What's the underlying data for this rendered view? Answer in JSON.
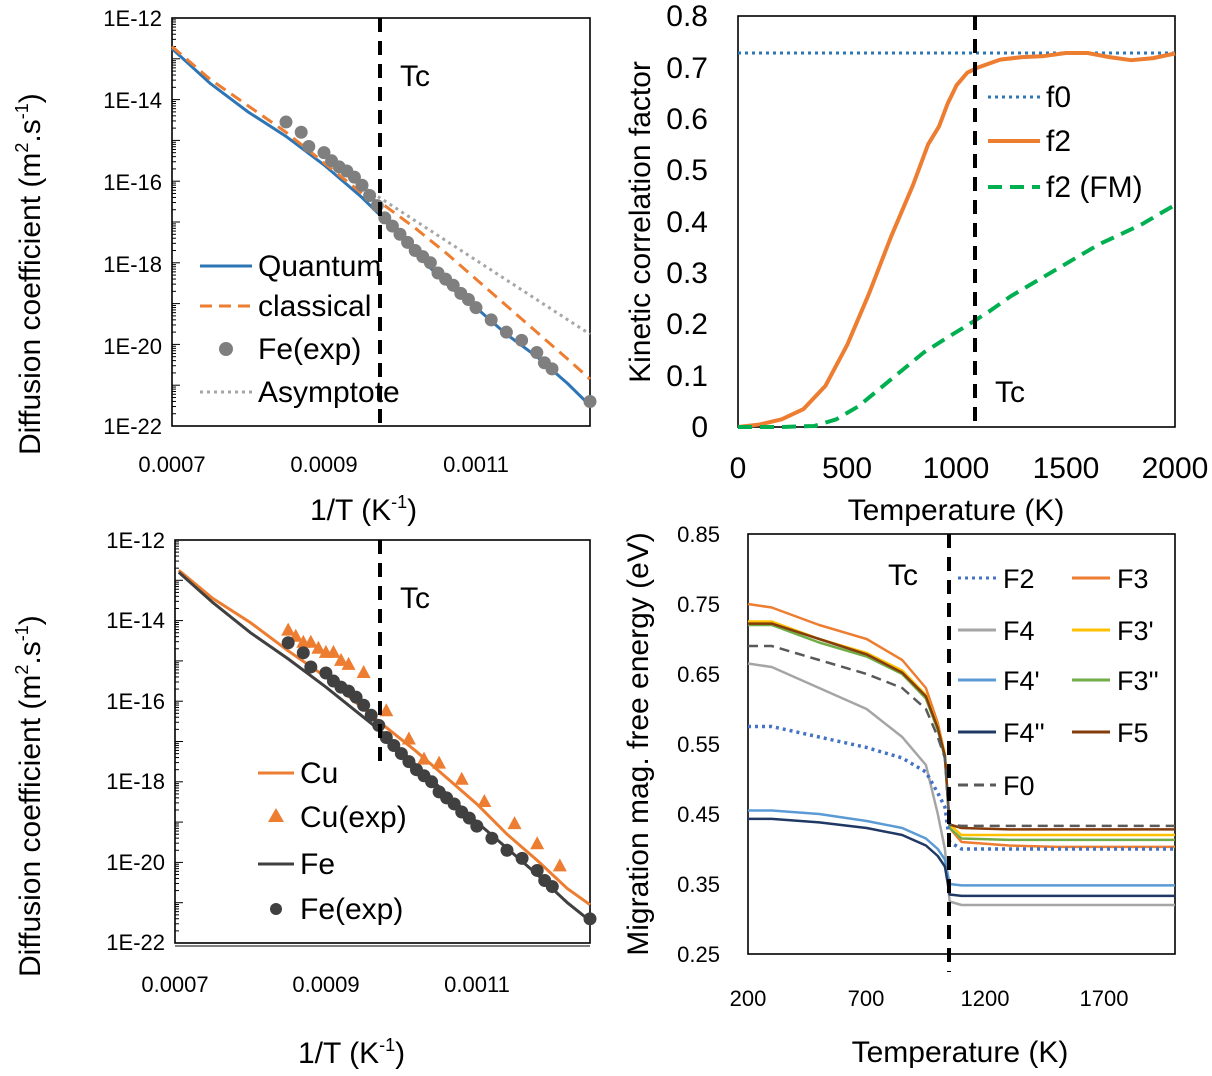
{
  "chart_data": [
    {
      "type": "line",
      "panel": "top-left",
      "xlabel": "1/T (K",
      "xlabel_sup": "-1",
      "xlabel_end": ")",
      "ylabel": "Diffusion coefficient (m",
      "ylabel_sup1": "2",
      "ylabel_mid": ".s",
      "ylabel_sup2": "-1",
      "ylabel_end": ")",
      "x_scale": "linear",
      "y_scale": "log",
      "xlim": [
        0.0007,
        0.00125
      ],
      "ylim_exp": [
        -22,
        -12
      ],
      "x_tick_labels": [
        "0.0007",
        "0.0009",
        "0.0011"
      ],
      "y_tick_labels": [
        "1E-12",
        "1E-14",
        "1E-16",
        "1E-18",
        "1E-20",
        "1E-22"
      ],
      "tc_label": "Tc",
      "tc_x": 0.000975,
      "legend": [
        "Quantum",
        "classical",
        "Fe(exp)",
        "Asymptote"
      ],
      "series": [
        {
          "name": "Quantum",
          "color": "#2e75b6",
          "x": [
            0.0007,
            0.00075,
            0.0008,
            0.00085,
            0.0009,
            0.00095,
            0.00098,
            0.00102,
            0.00106,
            0.0011,
            0.00114,
            0.00118,
            0.00122,
            0.00125
          ],
          "logy": [
            -12.75,
            -13.6,
            -14.3,
            -14.9,
            -15.6,
            -16.4,
            -16.95,
            -17.75,
            -18.5,
            -19.1,
            -19.75,
            -20.3,
            -20.95,
            -21.5
          ]
        },
        {
          "name": "classical",
          "color": "#ed7d31",
          "x": [
            0.0007,
            0.00075,
            0.0008,
            0.00085,
            0.0009,
            0.00095,
            0.00098,
            0.00102,
            0.00106,
            0.0011,
            0.00114,
            0.00118,
            0.00122,
            0.00125
          ],
          "logy": [
            -12.7,
            -13.5,
            -14.15,
            -14.8,
            -15.55,
            -16.3,
            -16.6,
            -17.15,
            -17.75,
            -18.4,
            -19.05,
            -19.7,
            -20.35,
            -20.85
          ]
        },
        {
          "name": "Asymptote",
          "color": "#a6a6a6",
          "x": [
            0.00094,
            0.00125
          ],
          "logy": [
            -16.0,
            -19.75
          ]
        },
        {
          "name": "Fe(exp)",
          "color": "#7f7f7f",
          "marker": "circle",
          "x": [
            0.00085,
            0.00087,
            0.00088,
            0.0009,
            0.00091,
            0.00092,
            0.00093,
            0.00094,
            0.00095,
            0.00096,
            0.00097,
            0.00098,
            0.00099,
            0.001,
            0.00101,
            0.00102,
            0.00103,
            0.00104,
            0.00105,
            0.00106,
            0.00107,
            0.00108,
            0.00109,
            0.0011,
            0.00112,
            0.00114,
            0.00116,
            0.00118,
            0.00119,
            0.0012,
            0.00125
          ],
          "logy": [
            -14.55,
            -14.8,
            -15.15,
            -15.3,
            -15.5,
            -15.65,
            -15.75,
            -15.9,
            -16.1,
            -16.35,
            -16.6,
            -16.9,
            -17.1,
            -17.3,
            -17.5,
            -17.7,
            -17.85,
            -18.0,
            -18.25,
            -18.4,
            -18.55,
            -18.75,
            -18.9,
            -19.1,
            -19.4,
            -19.7,
            -19.9,
            -20.2,
            -20.45,
            -20.6,
            -21.4
          ]
        }
      ]
    },
    {
      "type": "line",
      "panel": "top-right",
      "xlabel": "Temperature (K)",
      "ylabel": "Kinetic correlation factor",
      "xlim": [
        0,
        2000
      ],
      "ylim": [
        0,
        0.8
      ],
      "x_tick_labels": [
        "0",
        "500",
        "1000",
        "1500",
        "2000"
      ],
      "y_tick_labels": [
        "0",
        "0.1",
        "0.2",
        "0.3",
        "0.4",
        "0.5",
        "0.6",
        "0.7",
        "0.8"
      ],
      "tc_label": "Tc",
      "tc_x": 1090,
      "legend": [
        "f0",
        "f2",
        "f2 (FM)"
      ],
      "series": [
        {
          "name": "f0",
          "color": "#2e75b6",
          "x": [
            0,
            2000
          ],
          "y": [
            0.728,
            0.728
          ]
        },
        {
          "name": "f2",
          "color": "#ed7d31",
          "x": [
            0,
            100,
            200,
            300,
            400,
            500,
            600,
            700,
            800,
            870,
            920,
            960,
            1000,
            1050,
            1100,
            1200,
            1300,
            1400,
            1500,
            1600,
            1700,
            1800,
            1900,
            2000
          ],
          "y": [
            0.0,
            0.005,
            0.015,
            0.035,
            0.08,
            0.16,
            0.26,
            0.37,
            0.47,
            0.55,
            0.585,
            0.63,
            0.665,
            0.69,
            0.7,
            0.715,
            0.72,
            0.722,
            0.728,
            0.728,
            0.72,
            0.714,
            0.718,
            0.727
          ]
        },
        {
          "name": "f2 (FM)",
          "color": "#00b050",
          "x": [
            0,
            200,
            350,
            450,
            550,
            650,
            750,
            850,
            950,
            1050,
            1150,
            1250,
            1350,
            1450,
            1550,
            1650,
            1750,
            1850,
            1950,
            2000
          ],
          "y": [
            0.0,
            0.0,
            0.002,
            0.015,
            0.04,
            0.075,
            0.11,
            0.145,
            0.172,
            0.198,
            0.225,
            0.255,
            0.28,
            0.305,
            0.33,
            0.355,
            0.375,
            0.395,
            0.42,
            0.432
          ]
        }
      ]
    },
    {
      "type": "line",
      "panel": "bottom-left",
      "xlabel": "1/T (K",
      "xlabel_sup": "-1",
      "xlabel_end": ")",
      "ylabel": "Diffusion coefficient (m",
      "ylabel_sup1": "2",
      "ylabel_mid": ".s",
      "ylabel_sup2": "-1",
      "ylabel_end": ")",
      "x_scale": "linear",
      "y_scale": "log",
      "xlim": [
        0.0007,
        0.00125
      ],
      "ylim_exp": [
        -22,
        -12
      ],
      "x_tick_labels": [
        "0.0007",
        "0.0009",
        "0.0011"
      ],
      "y_tick_labels": [
        "1E-12",
        "1E-14",
        "1E-16",
        "1E-18",
        "1E-20",
        "1E-22"
      ],
      "tc_label": "Tc",
      "tc_x": 0.000975,
      "legend": [
        "Cu",
        "Cu(exp)",
        "Fe",
        "Fe(exp)"
      ],
      "series": [
        {
          "name": "Cu",
          "color": "#ed7d31",
          "x": [
            0.000705,
            0.00075,
            0.0008,
            0.00085,
            0.0009,
            0.00095,
            0.00098,
            0.00102,
            0.00106,
            0.0011,
            0.00114,
            0.00118,
            0.00122,
            0.00125
          ],
          "logy": [
            -12.75,
            -13.45,
            -14.05,
            -14.75,
            -15.4,
            -16.2,
            -16.65,
            -17.25,
            -17.9,
            -18.55,
            -19.3,
            -19.95,
            -20.65,
            -21.05
          ]
        },
        {
          "name": "Fe",
          "color": "#404040",
          "x": [
            0.000705,
            0.00075,
            0.0008,
            0.00085,
            0.0009,
            0.00095,
            0.00098,
            0.00102,
            0.00106,
            0.0011,
            0.00114,
            0.00118,
            0.00122,
            0.00125
          ],
          "logy": [
            -12.8,
            -13.55,
            -14.3,
            -14.95,
            -15.65,
            -16.4,
            -16.85,
            -17.6,
            -18.3,
            -19.0,
            -19.65,
            -20.3,
            -21.0,
            -21.45
          ]
        },
        {
          "name": "Cu(exp)",
          "color": "#ed7d31",
          "marker": "triangle",
          "x": [
            0.00085,
            0.00086,
            0.00087,
            0.00088,
            0.00089,
            0.0009,
            0.00091,
            0.00092,
            0.00093,
            0.00095,
            0.00098,
            0.00101,
            0.00103,
            0.00105,
            0.00108,
            0.00111,
            0.00115,
            0.00118,
            0.00121
          ],
          "logy": [
            -14.25,
            -14.4,
            -14.55,
            -14.55,
            -14.7,
            -14.8,
            -14.8,
            -15.0,
            -15.1,
            -15.3,
            -16.25,
            -16.95,
            -17.45,
            -17.55,
            -17.95,
            -18.5,
            -19.05,
            -19.55,
            -20.1
          ]
        },
        {
          "name": "Fe(exp)",
          "color": "#404040",
          "marker": "circle",
          "x": [
            0.00085,
            0.00087,
            0.00088,
            0.0009,
            0.00091,
            0.00092,
            0.00093,
            0.00094,
            0.00095,
            0.00096,
            0.00097,
            0.00098,
            0.00099,
            0.001,
            0.00101,
            0.00102,
            0.00103,
            0.00104,
            0.00105,
            0.00106,
            0.00107,
            0.00108,
            0.00109,
            0.0011,
            0.00112,
            0.00114,
            0.00116,
            0.00118,
            0.00119,
            0.0012,
            0.00125
          ],
          "logy": [
            -14.55,
            -14.8,
            -15.15,
            -15.3,
            -15.5,
            -15.65,
            -15.75,
            -15.9,
            -16.1,
            -16.35,
            -16.6,
            -16.9,
            -17.1,
            -17.3,
            -17.5,
            -17.7,
            -17.85,
            -18.0,
            -18.25,
            -18.4,
            -18.55,
            -18.75,
            -18.9,
            -19.1,
            -19.4,
            -19.7,
            -19.9,
            -20.2,
            -20.45,
            -20.6,
            -21.4
          ]
        }
      ]
    },
    {
      "type": "line",
      "panel": "bottom-right",
      "xlabel": "Temperature (K)",
      "ylabel": "Migration mag. free energy (eV)",
      "xlim": [
        200,
        2000
      ],
      "ylim": [
        0.25,
        0.85
      ],
      "x_tick_labels": [
        "200",
        "700",
        "1200",
        "1700"
      ],
      "y_tick_labels": [
        "0.25",
        "0.35",
        "0.45",
        "0.55",
        "0.65",
        "0.75",
        "0.85"
      ],
      "tc_label": "Tc",
      "tc_x": 1040,
      "legend": [
        "F2",
        "F3",
        "F4",
        "F3'",
        "F4'",
        "F3''",
        "F4''",
        "F5",
        "F0"
      ],
      "series": [
        {
          "name": "F3",
          "color": "#ed7d31",
          "style": "solid",
          "y": [
            0.75,
            0.745,
            0.72,
            0.7,
            0.67,
            0.63,
            0.58,
            0.535,
            0.43,
            0.41,
            0.405,
            0.403,
            0.403,
            0.403,
            0.403
          ]
        },
        {
          "name": "F3'",
          "color": "#ffc000",
          "style": "solid",
          "y": [
            0.725,
            0.725,
            0.7,
            0.68,
            0.655,
            0.62,
            0.575,
            0.535,
            0.435,
            0.42,
            0.42,
            0.42,
            0.42,
            0.42,
            0.42
          ]
        },
        {
          "name": "F3''",
          "color": "#70ad47",
          "style": "solid",
          "y": [
            0.72,
            0.72,
            0.695,
            0.675,
            0.65,
            0.615,
            0.57,
            0.53,
            0.43,
            0.415,
            0.413,
            0.413,
            0.413,
            0.413,
            0.413
          ]
        },
        {
          "name": "F5",
          "color": "#843c0c",
          "style": "solid",
          "y": [
            0.722,
            0.722,
            0.7,
            0.678,
            0.652,
            0.618,
            0.573,
            0.533,
            0.435,
            0.43,
            0.428,
            0.428,
            0.428,
            0.428,
            0.428
          ]
        },
        {
          "name": "F0",
          "color": "#595959",
          "style": "dash",
          "y": [
            0.69,
            0.69,
            0.67,
            0.65,
            0.63,
            0.6,
            0.56,
            0.53,
            0.435,
            0.433,
            0.433,
            0.433,
            0.433,
            0.433,
            0.433
          ]
        },
        {
          "name": "F4",
          "color": "#a5a5a5",
          "style": "solid",
          "y": [
            0.665,
            0.66,
            0.63,
            0.6,
            0.56,
            0.52,
            0.45,
            0.4,
            0.325,
            0.32,
            0.32,
            0.32,
            0.32,
            0.32,
            0.32
          ]
        },
        {
          "name": "F2",
          "color": "#4472c4",
          "style": "dot",
          "y": [
            0.575,
            0.575,
            0.56,
            0.545,
            0.53,
            0.51,
            0.48,
            0.46,
            0.41,
            0.4,
            0.4,
            0.4,
            0.4,
            0.4,
            0.4
          ]
        },
        {
          "name": "F4'",
          "color": "#5b9bd5",
          "style": "solid",
          "y": [
            0.455,
            0.455,
            0.45,
            0.44,
            0.43,
            0.415,
            0.4,
            0.385,
            0.35,
            0.348,
            0.348,
            0.348,
            0.348,
            0.348,
            0.348
          ]
        },
        {
          "name": "F4''",
          "color": "#203864",
          "style": "solid",
          "y": [
            0.443,
            0.443,
            0.438,
            0.43,
            0.42,
            0.405,
            0.39,
            0.375,
            0.335,
            0.333,
            0.333,
            0.333,
            0.333,
            0.333,
            0.333
          ]
        }
      ],
      "x": [
        200,
        300,
        500,
        700,
        850,
        950,
        1000,
        1030,
        1050,
        1100,
        1300,
        1500,
        1700,
        1900,
        2000
      ]
    }
  ]
}
